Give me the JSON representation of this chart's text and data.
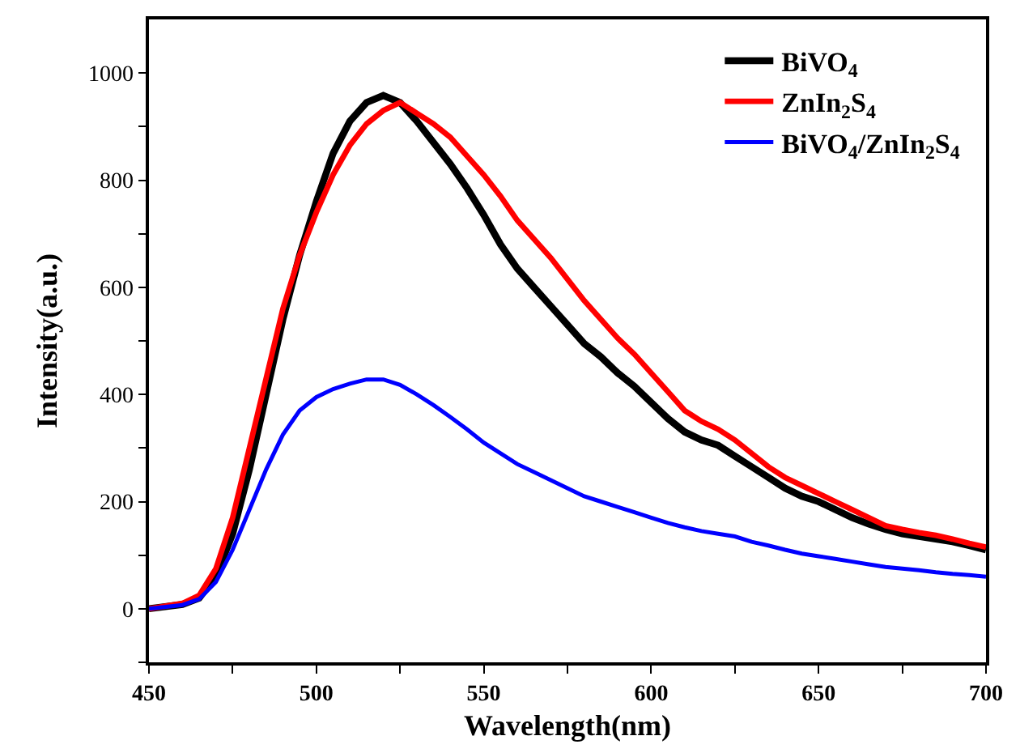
{
  "chart_data": {
    "type": "line",
    "xlabel": "Wavelength(nm)",
    "ylabel": "Intensity(a.u.)",
    "x": [
      450,
      460,
      465,
      470,
      475,
      480,
      485,
      490,
      495,
      500,
      505,
      510,
      515,
      520,
      525,
      530,
      535,
      540,
      545,
      550,
      555,
      560,
      565,
      570,
      575,
      580,
      585,
      590,
      595,
      600,
      605,
      610,
      615,
      620,
      625,
      630,
      635,
      640,
      645,
      650,
      655,
      660,
      665,
      670,
      675,
      680,
      685,
      690,
      695,
      700
    ],
    "series": [
      {
        "name": "BiVO$_{4}$",
        "color": "#000000",
        "values": [
          0,
          8,
          20,
          60,
          140,
          260,
          400,
          540,
          660,
          760,
          850,
          910,
          945,
          958,
          945,
          910,
          870,
          830,
          785,
          735,
          680,
          635,
          600,
          565,
          530,
          495,
          470,
          440,
          415,
          385,
          355,
          330,
          315,
          305,
          285,
          265,
          245,
          225,
          210,
          200,
          185,
          170,
          158,
          148,
          140,
          135,
          130,
          125,
          118,
          110
        ]
      },
      {
        "name": "ZnIn$_{2}$S$_{4}$",
        "color": "#ff0000",
        "values": [
          0,
          10,
          25,
          75,
          170,
          300,
          430,
          560,
          660,
          740,
          810,
          865,
          905,
          930,
          945,
          925,
          905,
          880,
          845,
          810,
          770,
          725,
          690,
          655,
          615,
          575,
          540,
          505,
          475,
          440,
          405,
          370,
          350,
          335,
          315,
          290,
          265,
          245,
          230,
          215,
          200,
          185,
          170,
          155,
          148,
          142,
          137,
          130,
          122,
          115
        ]
      },
      {
        "name": "BiVO$_{4}$/ZnIn$_{2}$S$_{4}$",
        "color": "#0000ff",
        "values": [
          0,
          7,
          18,
          50,
          110,
          185,
          260,
          325,
          370,
          395,
          410,
          420,
          428,
          428,
          418,
          400,
          380,
          358,
          335,
          310,
          290,
          270,
          255,
          240,
          225,
          210,
          200,
          190,
          180,
          170,
          160,
          152,
          145,
          140,
          135,
          125,
          118,
          110,
          103,
          98,
          93,
          88,
          83,
          78,
          75,
          72,
          68,
          65,
          63,
          60
        ]
      }
    ],
    "xlim": [
      450,
      700
    ],
    "xticks": [
      450,
      {
        "value": 475,
        "label": null
      },
      500,
      {
        "value": 525,
        "label": null
      },
      550,
      {
        "value": 575,
        "label": null
      },
      600,
      {
        "value": 625,
        "label": null
      },
      650,
      {
        "value": 675,
        "label": null
      },
      700
    ],
    "ylim": [
      -100,
      1100
    ],
    "yticks": [
      {
        "value": -100,
        "label": null
      },
      0,
      {
        "value": 100,
        "label": null
      },
      200,
      {
        "value": 300,
        "label": null
      },
      400,
      {
        "value": 500,
        "label": null
      },
      600,
      {
        "value": 700,
        "label": null
      },
      800,
      {
        "value": 900,
        "label": null
      },
      1000
    ],
    "grid": false,
    "legend": "top right",
    "marker": "none",
    "line_style": "solid"
  }
}
